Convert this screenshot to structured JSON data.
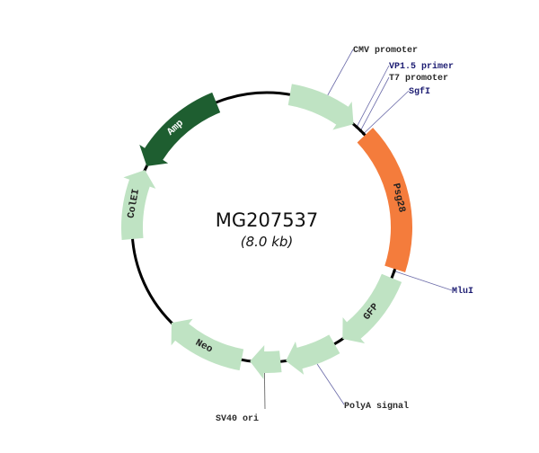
{
  "plasmid": {
    "name": "MG207537",
    "size_label": "(8.0 kb)",
    "length_kb": 8.0
  },
  "colors": {
    "backbone": "#000000",
    "feature": "#bfe3c3",
    "insert": "#f47c3c",
    "resistance": "#1e5e30",
    "marker_dark": "#2b2b2b",
    "marker_blue": "#1c1c72"
  },
  "features": [
    {
      "name": "CMV promoter",
      "label": "",
      "start_kb": 0.22,
      "end_kb": 0.89,
      "direction": "cw",
      "shape": "arrow",
      "color": "#bfe3c3"
    },
    {
      "name": "Psg28",
      "label": "Psg28",
      "start_kb": 1.04,
      "end_kb": 2.4,
      "direction": "cw",
      "shape": "box",
      "color": "#f47c3c",
      "text_color": "#222"
    },
    {
      "name": "GFP",
      "label": "GFP",
      "start_kb": 2.49,
      "end_kb": 3.24,
      "direction": "cw",
      "shape": "arrow",
      "color": "#bfe3c3",
      "text_color": "#222"
    },
    {
      "name": "PolyA signal",
      "label": "",
      "start_kb": 3.33,
      "end_kb": 3.82,
      "direction": "cw",
      "shape": "arrow",
      "color": "#bfe3c3"
    },
    {
      "name": "SV40 ori",
      "label": "",
      "start_kb": 3.87,
      "end_kb": 4.16,
      "direction": "cw",
      "shape": "arrow",
      "color": "#bfe3c3"
    },
    {
      "name": "Neo",
      "label": "Neo",
      "start_kb": 4.24,
      "end_kb": 5.0,
      "direction": "cw",
      "shape": "arrow",
      "color": "#bfe3c3",
      "text_color": "#222"
    },
    {
      "name": "ColE1",
      "label": "ColEI",
      "start_kb": 5.89,
      "end_kb": 6.56,
      "direction": "cw",
      "shape": "arrow",
      "color": "#bfe3c3",
      "text_color": "#222"
    },
    {
      "name": "Amp",
      "label": "Amp",
      "start_kb": 6.6,
      "end_kb": 7.51,
      "direction": "ccw",
      "shape": "arrow",
      "color": "#1e5e30",
      "text_color": "#ffffff"
    }
  ],
  "markers": [
    {
      "text": "CMV promoter",
      "pos_kb": 0.55,
      "color": "#2b2b2b"
    },
    {
      "text": "VP1.5 primer",
      "pos_kb": 0.93,
      "color": "#1c1c72"
    },
    {
      "text": "T7 promoter",
      "pos_kb": 0.98,
      "color": "#2b2b2b"
    },
    {
      "text": "SgfI",
      "pos_kb": 1.02,
      "color": "#1c1c72"
    },
    {
      "text": "MluI",
      "pos_kb": 2.42,
      "color": "#1c1c72"
    },
    {
      "text": "PolyA signal",
      "pos_kb": 3.55,
      "color": "#2b2b2b"
    },
    {
      "text": "SV40 ori",
      "pos_kb": 4.02,
      "color": "#2b2b2b"
    }
  ]
}
